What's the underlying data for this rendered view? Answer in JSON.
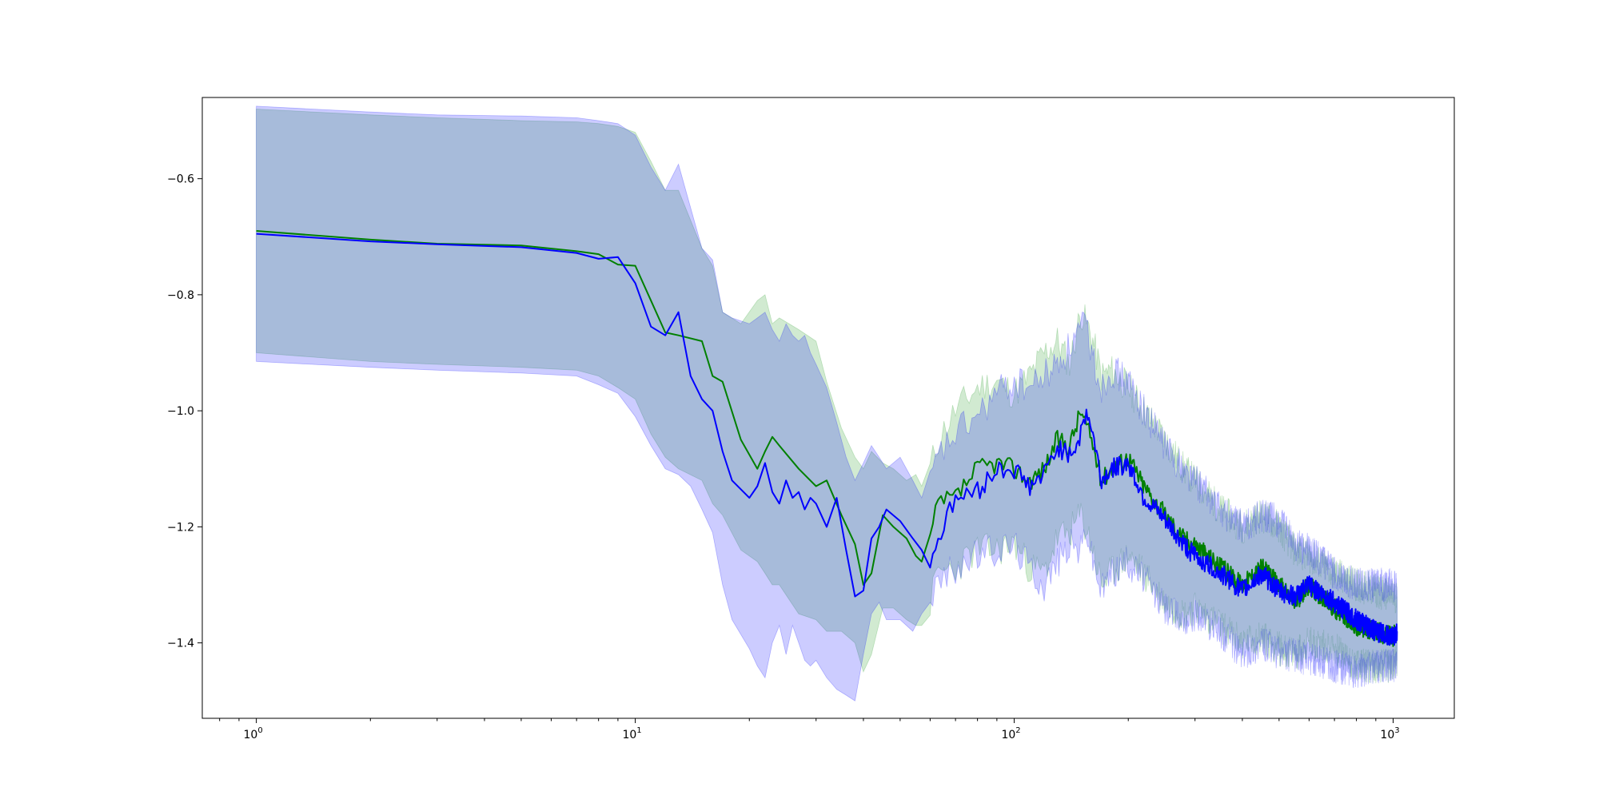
{
  "chart_data": {
    "type": "line",
    "title": "",
    "xlabel": "",
    "ylabel": "",
    "x_scale": "log",
    "xlim": [
      0.72,
      1450
    ],
    "ylim": [
      -1.53,
      -0.46
    ],
    "grid": false,
    "legend": "none",
    "x_ticks": [
      {
        "value": 1,
        "mantissa": "10",
        "exponent": "0"
      },
      {
        "value": 10,
        "mantissa": "10",
        "exponent": "1"
      },
      {
        "value": 100,
        "mantissa": "10",
        "exponent": "2"
      },
      {
        "value": 1000,
        "mantissa": "10",
        "exponent": "3"
      }
    ],
    "y_ticks": [
      {
        "value": -0.6,
        "label": "−0.6"
      },
      {
        "value": -0.8,
        "label": "−0.8"
      },
      {
        "value": -1.0,
        "label": "−1.0"
      },
      {
        "value": -1.2,
        "label": "−1.2"
      },
      {
        "value": -1.4,
        "label": "−1.4"
      }
    ],
    "series": [
      {
        "color": "#008000",
        "band_color": "#2ca02c",
        "band_opacity": 0.22,
        "x": [
          1,
          2,
          3,
          5,
          7,
          8,
          9,
          10,
          11,
          12,
          13,
          15,
          16,
          17,
          19,
          21,
          22,
          23,
          24,
          27,
          30,
          32,
          35,
          38,
          40,
          42,
          45,
          48,
          52,
          55,
          57,
          60,
          63,
          70,
          80,
          90,
          100,
          110,
          120,
          130,
          140,
          150,
          160,
          170,
          180,
          200,
          220,
          250,
          280,
          300,
          350,
          400,
          450,
          500,
          550,
          600,
          700,
          800,
          900,
          1000,
          1024
        ],
        "y": [
          -0.69,
          -0.705,
          -0.712,
          -0.715,
          -0.725,
          -0.73,
          -0.748,
          -0.75,
          -0.81,
          -0.865,
          -0.87,
          -0.88,
          -0.94,
          -0.95,
          -1.05,
          -1.1,
          -1.07,
          -1.045,
          -1.06,
          -1.1,
          -1.13,
          -1.12,
          -1.18,
          -1.23,
          -1.3,
          -1.28,
          -1.18,
          -1.2,
          -1.22,
          -1.25,
          -1.26,
          -1.22,
          -1.16,
          -1.15,
          -1.1,
          -1.09,
          -1.1,
          -1.12,
          -1.1,
          -1.05,
          -1.06,
          -1.0,
          -1.05,
          -1.12,
          -1.1,
          -1.08,
          -1.13,
          -1.18,
          -1.22,
          -1.23,
          -1.27,
          -1.3,
          -1.27,
          -1.3,
          -1.33,
          -1.3,
          -1.34,
          -1.37,
          -1.38,
          -1.39,
          -1.38
        ],
        "upper": [
          -0.48,
          -0.49,
          -0.495,
          -0.5,
          -0.502,
          -0.505,
          -0.51,
          -0.52,
          -0.57,
          -0.62,
          -0.62,
          -0.72,
          -0.75,
          -0.83,
          -0.85,
          -0.81,
          -0.8,
          -0.85,
          -0.84,
          -0.86,
          -0.88,
          -0.95,
          -1.03,
          -1.08,
          -1.1,
          -1.07,
          -1.09,
          -1.1,
          -1.12,
          -1.11,
          -1.13,
          -1.1,
          -1.05,
          -1.0,
          -0.96,
          -0.95,
          -0.97,
          -0.94,
          -0.9,
          -0.88,
          -0.92,
          -0.83,
          -0.87,
          -0.94,
          -0.93,
          -0.96,
          -1.0,
          -1.05,
          -1.1,
          -1.12,
          -1.17,
          -1.2,
          -1.18,
          -1.2,
          -1.24,
          -1.25,
          -1.28,
          -1.3,
          -1.31,
          -1.32,
          -1.32
        ],
        "lower": [
          -0.9,
          -0.915,
          -0.92,
          -0.925,
          -0.93,
          -0.94,
          -0.96,
          -0.98,
          -1.04,
          -1.08,
          -1.1,
          -1.12,
          -1.16,
          -1.18,
          -1.24,
          -1.26,
          -1.28,
          -1.3,
          -1.3,
          -1.35,
          -1.36,
          -1.38,
          -1.38,
          -1.4,
          -1.45,
          -1.42,
          -1.34,
          -1.34,
          -1.36,
          -1.37,
          -1.37,
          -1.33,
          -1.28,
          -1.27,
          -1.24,
          -1.24,
          -1.23,
          -1.27,
          -1.28,
          -1.22,
          -1.21,
          -1.18,
          -1.23,
          -1.3,
          -1.28,
          -1.25,
          -1.28,
          -1.33,
          -1.35,
          -1.34,
          -1.37,
          -1.4,
          -1.39,
          -1.41,
          -1.42,
          -1.4,
          -1.41,
          -1.44,
          -1.44,
          -1.44,
          -1.43
        ]
      },
      {
        "color": "#0000ff",
        "band_color": "#0000ff",
        "band_opacity": 0.2,
        "x": [
          1,
          2,
          3,
          5,
          7,
          8,
          9,
          10,
          11,
          12,
          13,
          14,
          15,
          16,
          17,
          18,
          20,
          21,
          22,
          23,
          24,
          25,
          26,
          27,
          28,
          29,
          30,
          32,
          34,
          36,
          38,
          40,
          42,
          44,
          46,
          50,
          54,
          57,
          60,
          63,
          70,
          80,
          90,
          100,
          110,
          120,
          130,
          140,
          150,
          155,
          160,
          170,
          180,
          200,
          220,
          250,
          280,
          300,
          350,
          400,
          450,
          500,
          550,
          600,
          700,
          800,
          900,
          1000,
          1024
        ],
        "y": [
          -0.695,
          -0.708,
          -0.713,
          -0.718,
          -0.728,
          -0.738,
          -0.735,
          -0.78,
          -0.855,
          -0.87,
          -0.83,
          -0.94,
          -0.98,
          -1.0,
          -1.07,
          -1.12,
          -1.15,
          -1.13,
          -1.09,
          -1.14,
          -1.16,
          -1.12,
          -1.15,
          -1.14,
          -1.17,
          -1.15,
          -1.16,
          -1.2,
          -1.15,
          -1.24,
          -1.32,
          -1.31,
          -1.22,
          -1.2,
          -1.17,
          -1.19,
          -1.22,
          -1.24,
          -1.26,
          -1.22,
          -1.15,
          -1.14,
          -1.1,
          -1.1,
          -1.13,
          -1.11,
          -1.06,
          -1.08,
          -1.04,
          -1.0,
          -1.03,
          -1.12,
          -1.1,
          -1.09,
          -1.15,
          -1.19,
          -1.23,
          -1.25,
          -1.28,
          -1.31,
          -1.28,
          -1.31,
          -1.32,
          -1.3,
          -1.33,
          -1.36,
          -1.38,
          -1.39,
          -1.38
        ],
        "upper": [
          -0.475,
          -0.485,
          -0.49,
          -0.492,
          -0.495,
          -0.5,
          -0.505,
          -0.525,
          -0.58,
          -0.62,
          -0.575,
          -0.65,
          -0.72,
          -0.74,
          -0.83,
          -0.84,
          -0.85,
          -0.84,
          -0.83,
          -0.86,
          -0.88,
          -0.85,
          -0.87,
          -0.88,
          -0.87,
          -0.9,
          -0.92,
          -0.96,
          -1.02,
          -1.08,
          -1.12,
          -1.09,
          -1.06,
          -1.08,
          -1.1,
          -1.08,
          -1.12,
          -1.15,
          -1.13,
          -1.08,
          -1.04,
          -1.01,
          -0.97,
          -0.95,
          -0.96,
          -0.94,
          -0.92,
          -0.89,
          -0.86,
          -0.85,
          -0.9,
          -0.96,
          -0.93,
          -0.95,
          -1.0,
          -1.06,
          -1.1,
          -1.12,
          -1.17,
          -1.2,
          -1.18,
          -1.19,
          -1.23,
          -1.24,
          -1.28,
          -1.3,
          -1.3,
          -1.3,
          -1.31
        ],
        "lower": [
          -0.915,
          -0.925,
          -0.93,
          -0.935,
          -0.94,
          -0.955,
          -0.97,
          -1.01,
          -1.06,
          -1.1,
          -1.11,
          -1.13,
          -1.17,
          -1.21,
          -1.3,
          -1.36,
          -1.41,
          -1.44,
          -1.46,
          -1.4,
          -1.37,
          -1.42,
          -1.37,
          -1.4,
          -1.43,
          -1.44,
          -1.43,
          -1.46,
          -1.48,
          -1.49,
          -1.5,
          -1.42,
          -1.35,
          -1.33,
          -1.36,
          -1.36,
          -1.38,
          -1.35,
          -1.32,
          -1.3,
          -1.27,
          -1.25,
          -1.24,
          -1.23,
          -1.27,
          -1.3,
          -1.26,
          -1.23,
          -1.24,
          -1.2,
          -1.25,
          -1.31,
          -1.28,
          -1.26,
          -1.29,
          -1.34,
          -1.36,
          -1.35,
          -1.38,
          -1.42,
          -1.4,
          -1.42,
          -1.42,
          -1.43,
          -1.44,
          -1.45,
          -1.44,
          -1.44,
          -1.43
        ]
      }
    ]
  }
}
